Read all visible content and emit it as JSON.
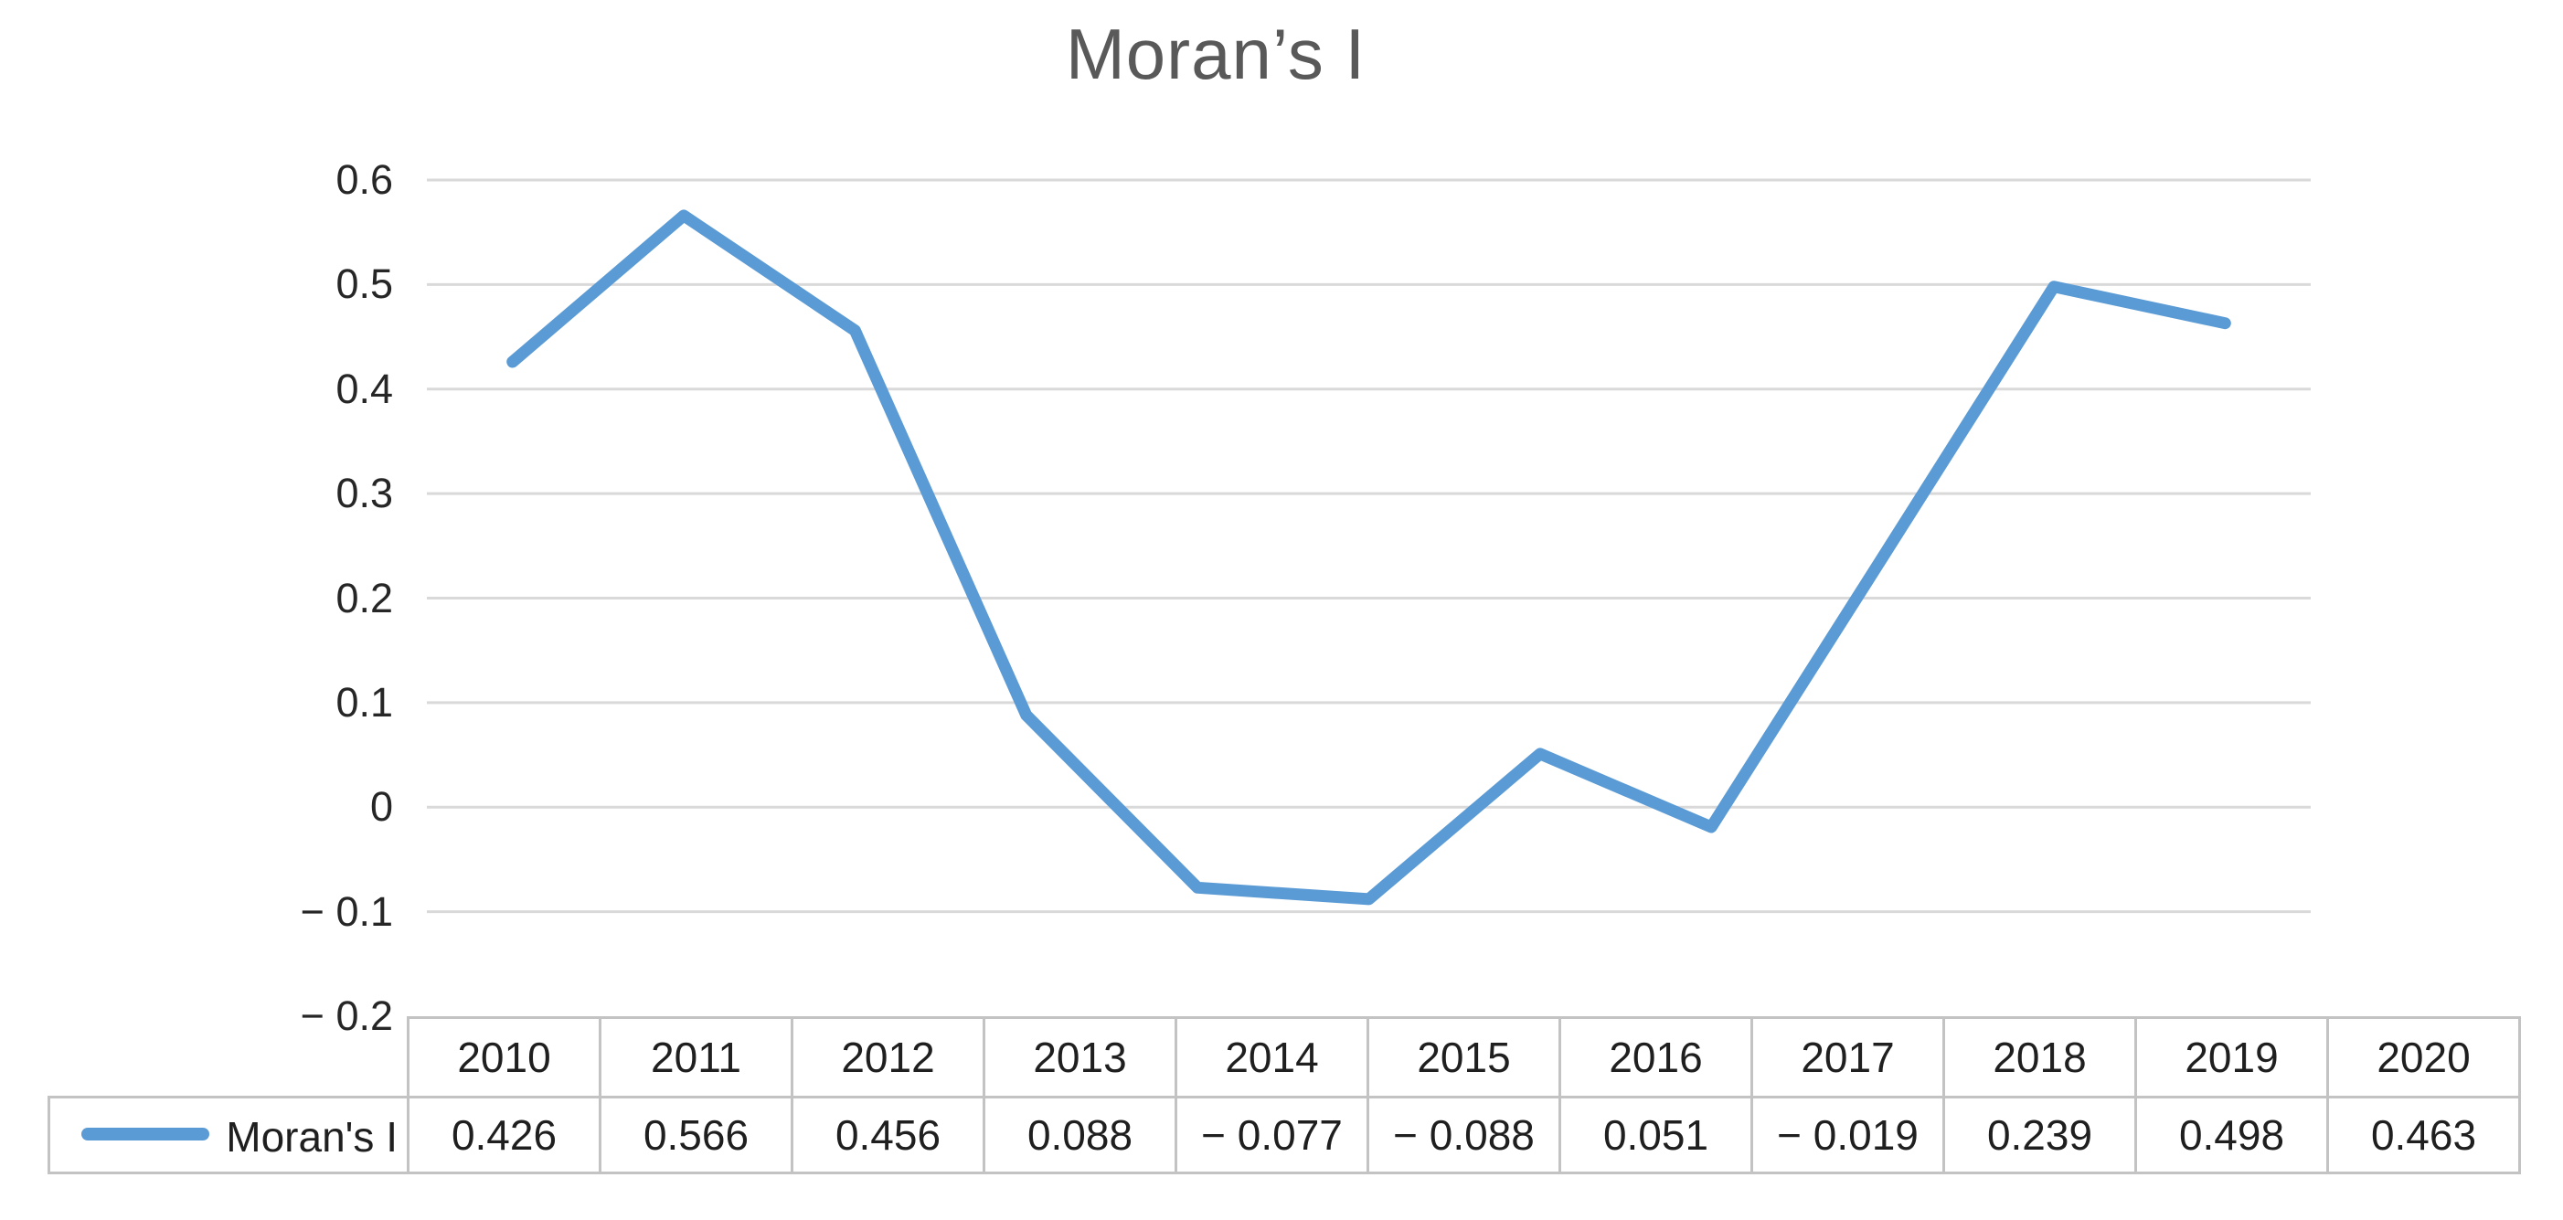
{
  "chart_data": {
    "type": "line",
    "title": "Moran’s I",
    "categories": [
      "2010",
      "2011",
      "2012",
      "2013",
      "2014",
      "2015",
      "2016",
      "2017",
      "2018",
      "2019",
      "2020"
    ],
    "series": [
      {
        "name": "Moran's I",
        "values": [
          0.426,
          0.566,
          0.456,
          0.088,
          -0.077,
          -0.088,
          0.051,
          -0.019,
          0.239,
          0.498,
          0.463
        ]
      }
    ],
    "value_labels": [
      "0.426",
      "0.566",
      "0.456",
      "0.088",
      "− 0.077",
      "− 0.088",
      "0.051",
      "− 0.019",
      "0.239",
      "0.498",
      "0.463"
    ],
    "ylim": [
      -0.2,
      0.6
    ],
    "ytick_step": 0.1,
    "ytick_labels": [
      "0.6",
      "0.5",
      "0.4",
      "0.3",
      "0.2",
      "0.1",
      "0",
      "− 0.1",
      "− 0.2"
    ],
    "xlabel": "",
    "ylabel": "",
    "grid": "horizontal-only",
    "legend_position": "data-table-row-header",
    "markers": "none",
    "colors": {
      "series": "#5b9bd5",
      "gridline": "#d9d9d9",
      "title_text": "#595959",
      "axis_text": "#262626",
      "table_border": "#c3c3c3",
      "table_text": "#1f1f1f"
    }
  }
}
